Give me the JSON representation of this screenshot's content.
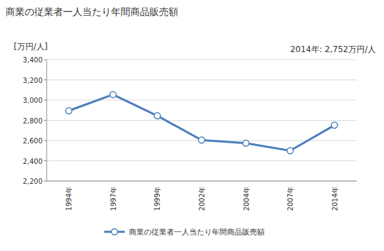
{
  "chart_data": {
    "type": "line",
    "title": "商業の従業者一人当たり年間商品販売額",
    "y_label": "[万円/人]",
    "annotation": "2014年: 2,752万円/人",
    "categories": [
      "1994年",
      "1997年",
      "1999年",
      "2002年",
      "2004年",
      "2007年",
      "2014年"
    ],
    "series": [
      {
        "name": "商業の従業者一人当たり年間商品販売額",
        "color": "#4a7ebb",
        "values": [
          2895,
          3055,
          2845,
          2605,
          2575,
          2500,
          2752
        ],
        "marker": "circle",
        "line_style": "solid"
      }
    ],
    "ylim": [
      2200,
      3400
    ],
    "yticks": [
      {
        "value": 2200,
        "label": "2,200"
      },
      {
        "value": 2400,
        "label": "2,400"
      },
      {
        "value": 2600,
        "label": "2,600"
      },
      {
        "value": 2800,
        "label": "2,800"
      },
      {
        "value": 3000,
        "label": "3,000"
      },
      {
        "value": 3200,
        "label": "3,200"
      },
      {
        "value": 3400,
        "label": "3,400"
      }
    ],
    "grid": true,
    "legend": "bottom"
  }
}
